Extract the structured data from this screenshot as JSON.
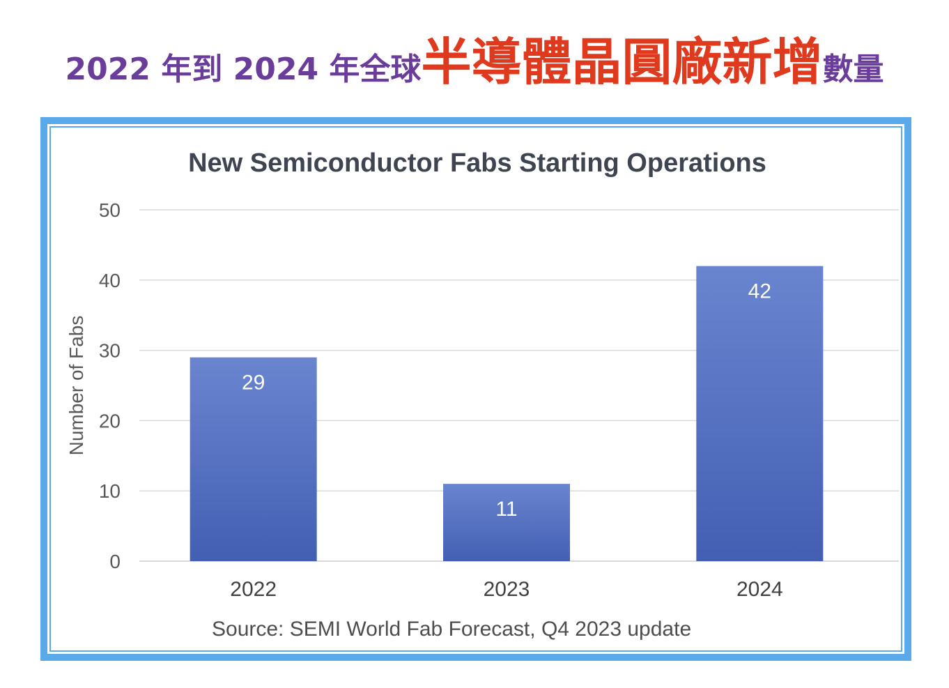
{
  "headline": {
    "pre": "2022 年到 2024 年全球",
    "emphasis": "半導體晶圓廠新增",
    "post": "數量"
  },
  "colors": {
    "headline_text": "#6a3d9a",
    "headline_emphasis": "#e03a1e",
    "frame_border": "#5aa9ea",
    "bar_top": "#6a85cf",
    "bar_bottom": "#425fb3",
    "grid": "#d9d9d9"
  },
  "source_note": "Source: SEMI World Fab Forecast, Q4 2023 update",
  "chart_data": {
    "type": "bar",
    "title": "New Semiconductor Fabs Starting Operations",
    "xlabel": "",
    "ylabel": "Number of Fabs",
    "categories": [
      "2022",
      "2023",
      "2024"
    ],
    "values": [
      29,
      11,
      42
    ],
    "data_labels": [
      "29",
      "11",
      "42"
    ],
    "ylim": [
      0,
      50
    ],
    "yticks": [
      "0",
      "10",
      "20",
      "30",
      "40",
      "50"
    ],
    "grid": true,
    "legend": "none"
  }
}
